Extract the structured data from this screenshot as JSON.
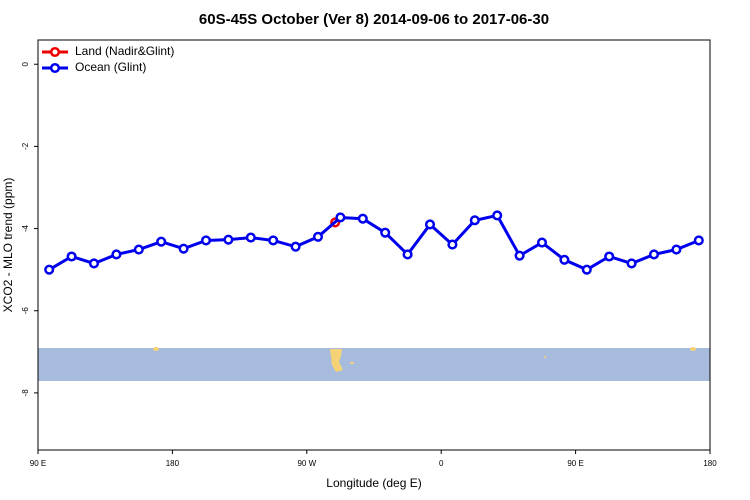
{
  "chart_data": {
    "type": "line",
    "title": "60S-45S October (Ver 8)   2014-09-06 to 2017-06-30",
    "x_label": "Longitude (deg E)",
    "y_label": "XCO2 - MLO trend (ppm)",
    "xlim": [
      90,
      540
    ],
    "xticks": [
      {
        "value": 90,
        "label": "90 E"
      },
      {
        "value": 180,
        "label": "180"
      },
      {
        "value": 270,
        "label": "90 W"
      },
      {
        "value": 360,
        "label": "0"
      },
      {
        "value": 450,
        "label": "90 E"
      },
      {
        "value": 540,
        "label": "180"
      }
    ],
    "ylim": [
      -9.39,
      0.59
    ],
    "yticks": [
      0,
      -2,
      -4,
      -6,
      -8
    ],
    "legend": "top-left",
    "series": [
      {
        "name": "Land (Nadir&Glint)",
        "color": "#ee0000",
        "x": [
          289
        ],
        "values": [
          -3.85
        ]
      },
      {
        "name": "Ocean (Glint)",
        "color": "#0000ee",
        "x": [
          97.5,
          112.5,
          127.5,
          142.5,
          157.5,
          172.5,
          187.5,
          202.5,
          217.5,
          232.5,
          247.5,
          262.5,
          277.5,
          292.5,
          307.5,
          322.5,
          337.5,
          352.5,
          367.5,
          382.5,
          397.5,
          412.5,
          427.5,
          442.5,
          457.5,
          472.5,
          487.5,
          502.5,
          517.5,
          532.5
        ],
        "values": [
          -5.0,
          -4.68,
          -4.85,
          -4.63,
          -4.51,
          -4.32,
          -4.49,
          -4.29,
          -4.27,
          -4.22,
          -4.29,
          -4.44,
          -4.2,
          -3.73,
          -3.76,
          -4.1,
          -4.63,
          -3.9,
          -4.39,
          -3.8,
          -3.68,
          -4.66,
          -4.34,
          -4.76,
          -5.0,
          -4.68,
          -4.85,
          -4.63,
          -4.51,
          -4.29
        ]
      }
    ]
  }
}
